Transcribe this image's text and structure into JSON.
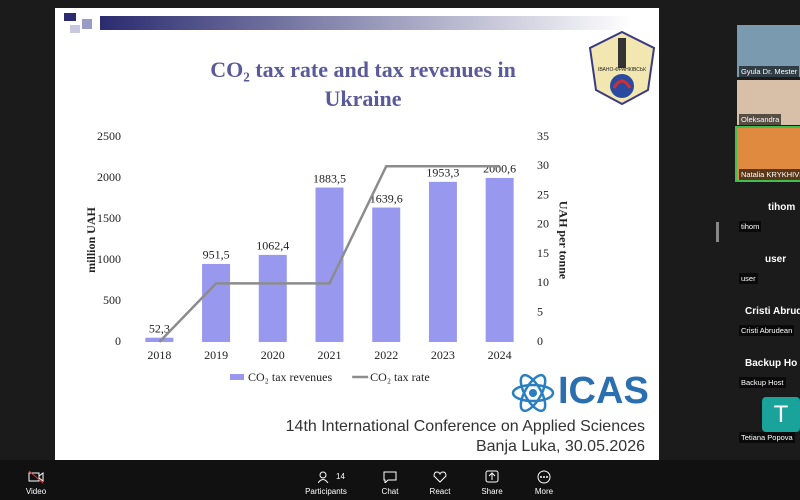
{
  "chart_data": {
    "type": "bar",
    "title": "CO₂ tax rate and tax revenues in Ukraine",
    "categories": [
      "2018",
      "2019",
      "2020",
      "2021",
      "2022",
      "2023",
      "2024"
    ],
    "series": [
      {
        "name": "CO₂ tax revenues",
        "color": "#9898ee",
        "values": [
          52.3,
          951.5,
          1062.4,
          1883.5,
          1639.6,
          1953.3,
          2000.6
        ],
        "value_labels": [
          "52,3",
          "951,5",
          "1062,4",
          "1883,5",
          "1639,6",
          "1953,3",
          "2000,6"
        ]
      },
      {
        "name": "CO₂ tax rate",
        "color": "#8c8c8c",
        "type": "line",
        "axis": "y2",
        "values": [
          0,
          10,
          10,
          10,
          30,
          30,
          30
        ]
      }
    ],
    "ylabel": "million UAH",
    "y2label": "UAH per tonne",
    "ylim": [
      0,
      2500
    ],
    "yticks": [
      0,
      500,
      1000,
      1500,
      2000,
      2500
    ],
    "y2lim": [
      0,
      35
    ],
    "y2ticks": [
      0,
      5,
      10,
      15,
      20,
      25,
      30,
      35
    ],
    "grid": false,
    "legend": "bottom"
  },
  "slide": {
    "logo_text": "ІВАНО-ФРАНКІВСЬК",
    "brand": "ICAS",
    "conference": "14th International Conference on Applied Sciences",
    "place_date": "Banja Luka, 30.05.2026"
  },
  "video_tiles": [
    "Gyula Dr. Mester",
    "Oleksandra",
    "Natalia KRYKHIVSK"
  ],
  "name_tiles": [
    {
      "heading": "tihom",
      "label": "tihom"
    },
    {
      "heading": "user",
      "label": "user"
    },
    {
      "heading": "Cristi Abrud",
      "label": "Cristi Abrudean"
    },
    {
      "heading": "Backup Ho",
      "label": "Backup Host"
    }
  ],
  "avatar_tile": {
    "initial": "T",
    "label": "Tetiana Popova"
  },
  "toolbar": {
    "video": "Video",
    "participants_count": "14",
    "participants": "Participants",
    "chat": "Chat",
    "react": "React",
    "share": "Share",
    "more": "More"
  }
}
